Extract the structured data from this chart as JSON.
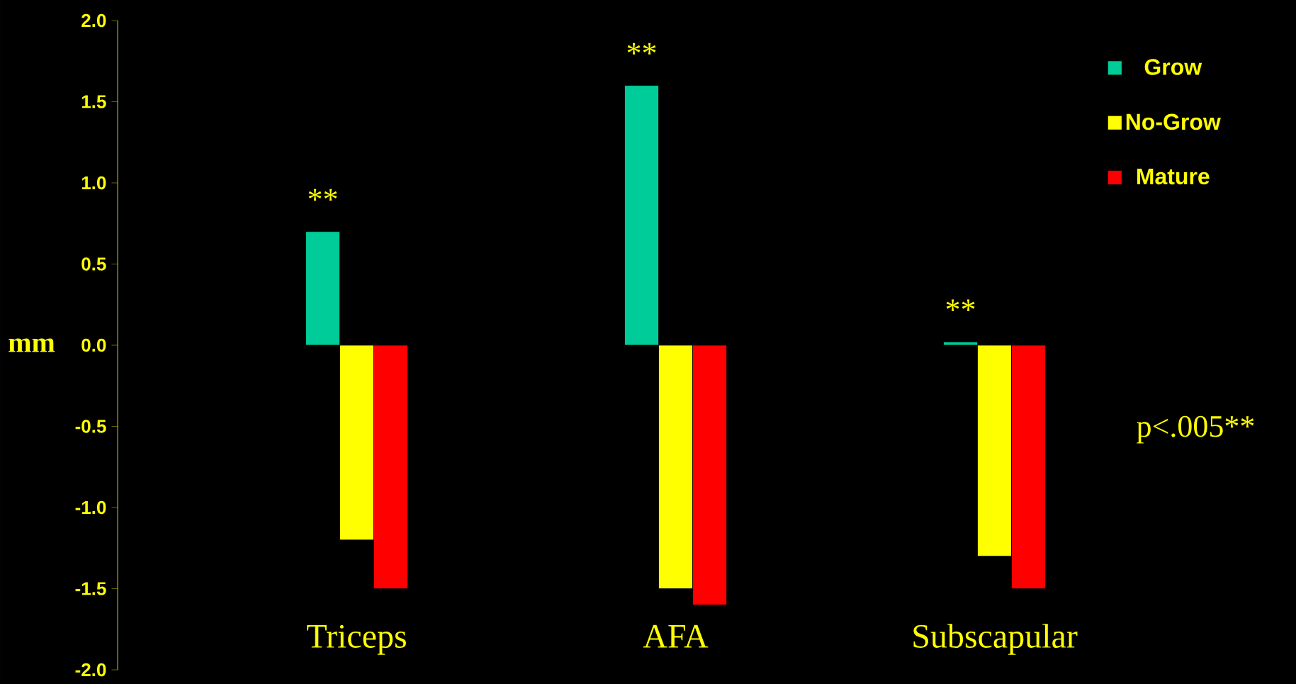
{
  "chart_data": {
    "type": "bar",
    "ylabel": "mm",
    "categories": [
      "Triceps",
      "AFA",
      "Subscapular"
    ],
    "series": [
      {
        "name": "Grow",
        "color": "#00cc99",
        "values": [
          0.7,
          1.6,
          0.02
        ]
      },
      {
        "name": "No-Grow",
        "color": "#ffff00",
        "values": [
          -1.2,
          -1.5,
          -1.3
        ]
      },
      {
        "name": "Mature",
        "color": "#ff0000",
        "values": [
          -1.5,
          -1.6,
          -1.5
        ]
      }
    ],
    "ylim": [
      -2,
      2
    ],
    "yticks": [
      {
        "value": -2,
        "label": "-2.0"
      },
      {
        "value": -1.5,
        "label": "-1.5"
      },
      {
        "value": -1,
        "label": "-1.0"
      },
      {
        "value": -0.5,
        "label": "-0.5"
      },
      {
        "value": 0,
        "label": "0.0"
      },
      {
        "value": 0.5,
        "label": "0.5"
      },
      {
        "value": 1,
        "label": "1.0"
      },
      {
        "value": 1.5,
        "label": "1.5"
      },
      {
        "value": 2,
        "label": "2.0"
      }
    ],
    "legend": "right",
    "annotations": [
      "**",
      "**",
      "**",
      "p<.005**"
    ]
  }
}
